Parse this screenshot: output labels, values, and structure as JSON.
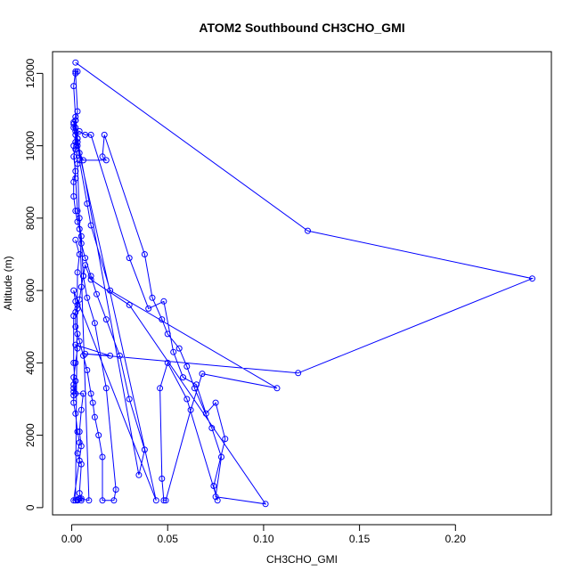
{
  "chart_data": {
    "type": "line",
    "title": "ATOM2 Southbound CH3CHO_GMI",
    "xlabel": "CH3CHO_GMI",
    "ylabel": "Altitude (m)",
    "xlim": [
      -0.01,
      0.25
    ],
    "ylim": [
      -200,
      12600
    ],
    "x_ticks": [
      0.0,
      0.05,
      0.1,
      0.15,
      0.2
    ],
    "x_tick_labels": [
      "0.00",
      "0.05",
      "0.10",
      "0.15",
      "0.20"
    ],
    "y_ticks": [
      0,
      2000,
      4000,
      6000,
      8000,
      10000,
      12000
    ],
    "y_tick_labels": [
      "0",
      "2000",
      "4000",
      "6000",
      "8000",
      "10000",
      "12000"
    ],
    "grid": false,
    "legend": "none",
    "series": [
      {
        "color": "#0000ff",
        "marker": "open-circle",
        "points": [
          [
            0.002,
            12300
          ],
          [
            0.123,
            7650
          ],
          [
            0.24,
            6330
          ],
          [
            0.118,
            3720
          ],
          [
            0.007,
            4250
          ],
          [
            0.02,
            4200
          ],
          [
            0.002,
            4500
          ],
          [
            0.003,
            4400
          ],
          [
            0.002,
            4000
          ],
          [
            0.001,
            3600
          ],
          [
            0.001,
            3300
          ],
          [
            0.001,
            3100
          ],
          [
            0.002,
            3500
          ],
          [
            0.001,
            3400
          ],
          [
            0.001,
            3200
          ],
          [
            0.001,
            2900
          ],
          [
            0.002,
            2600
          ],
          [
            0.003,
            2100
          ],
          [
            0.004,
            1800
          ],
          [
            0.003,
            1500
          ],
          [
            0.004,
            1300
          ],
          [
            0.005,
            1200
          ],
          [
            0.004,
            400
          ],
          [
            0.005,
            200
          ],
          [
            0.003,
            200
          ],
          [
            0.003,
            220
          ],
          [
            0.004,
            250
          ],
          [
            0.005,
            250
          ],
          [
            0.009,
            200
          ],
          [
            0.004,
            8000
          ],
          [
            0.003,
            9500
          ],
          [
            0.002,
            10300
          ],
          [
            0.004,
            10400
          ],
          [
            0.007,
            10300
          ],
          [
            0.01,
            10300
          ],
          [
            0.03,
            6900
          ],
          [
            0.04,
            5500
          ],
          [
            0.048,
            5700
          ],
          [
            0.053,
            4300
          ],
          [
            0.058,
            3600
          ],
          [
            0.065,
            3400
          ],
          [
            0.07,
            2600
          ],
          [
            0.075,
            2900
          ],
          [
            0.08,
            1900
          ],
          [
            0.074,
            600
          ],
          [
            0.076,
            200
          ],
          [
            0.06,
            3000
          ],
          [
            0.05,
            4000
          ],
          [
            0.046,
            3300
          ],
          [
            0.047,
            800
          ],
          [
            0.048,
            200
          ],
          [
            0.049,
            200
          ],
          [
            0.062,
            2700
          ],
          [
            0.068,
            3700
          ],
          [
            0.107,
            3300
          ],
          [
            0.02,
            6000
          ],
          [
            0.01,
            7800
          ],
          [
            0.008,
            8400
          ],
          [
            0.004,
            9600
          ],
          [
            0.002,
            10800
          ],
          [
            0.001,
            11650
          ],
          [
            0.002,
            12050
          ],
          [
            0.003,
            12050
          ],
          [
            0.002,
            12000
          ],
          [
            0.003,
            10950
          ],
          [
            0.002,
            10700
          ],
          [
            0.001,
            10600
          ],
          [
            0.002,
            10500
          ],
          [
            0.003,
            10200
          ],
          [
            0.003,
            10000
          ],
          [
            0.004,
            9800
          ],
          [
            0.006,
            9600
          ],
          [
            0.018,
            9600
          ],
          [
            0.016,
            9700
          ],
          [
            0.017,
            10300
          ],
          [
            0.038,
            7000
          ],
          [
            0.042,
            5800
          ],
          [
            0.047,
            5200
          ],
          [
            0.05,
            4800
          ],
          [
            0.056,
            4400
          ],
          [
            0.06,
            3900
          ],
          [
            0.064,
            3300
          ],
          [
            0.073,
            2200
          ],
          [
            0.078,
            1400
          ],
          [
            0.075,
            300
          ],
          [
            0.101,
            100
          ],
          [
            0.03,
            5600
          ],
          [
            0.01,
            6300
          ],
          [
            0.007,
            6700
          ],
          [
            0.006,
            6400
          ],
          [
            0.005,
            6100
          ],
          [
            0.004,
            5750
          ],
          [
            0.003,
            5600
          ],
          [
            0.002,
            5400
          ],
          [
            0.002,
            5000
          ],
          [
            0.003,
            4800
          ],
          [
            0.004,
            4600
          ],
          [
            0.006,
            4200
          ],
          [
            0.008,
            3800
          ],
          [
            0.01,
            3150
          ],
          [
            0.011,
            2900
          ],
          [
            0.012,
            2500
          ],
          [
            0.014,
            2000
          ],
          [
            0.016,
            1400
          ],
          [
            0.016,
            200
          ],
          [
            0.022,
            200
          ],
          [
            0.023,
            500
          ],
          [
            0.018,
            3300
          ],
          [
            0.012,
            5100
          ],
          [
            0.008,
            5800
          ],
          [
            0.006,
            6400
          ],
          [
            0.005,
            7500
          ],
          [
            0.003,
            8200
          ],
          [
            0.002,
            9100
          ],
          [
            0.001,
            10000
          ],
          [
            0.002,
            10100
          ],
          [
            0.003,
            10200
          ],
          [
            0.035,
            900
          ],
          [
            0.038,
            1600
          ],
          [
            0.03,
            3000
          ],
          [
            0.025,
            4200
          ],
          [
            0.018,
            5200
          ],
          [
            0.013,
            5900
          ],
          [
            0.01,
            6400
          ],
          [
            0.007,
            6900
          ],
          [
            0.005,
            7300
          ],
          [
            0.004,
            7700
          ],
          [
            0.003,
            7900
          ],
          [
            0.002,
            8200
          ],
          [
            0.001,
            8600
          ],
          [
            0.001,
            9000
          ],
          [
            0.002,
            9300
          ],
          [
            0.001,
            9700
          ],
          [
            0.002,
            9900
          ],
          [
            0.003,
            10100
          ],
          [
            0.002,
            10400
          ],
          [
            0.001,
            10650
          ],
          [
            0.002,
            10700
          ],
          [
            0.001,
            10500
          ],
          [
            0.044,
            200
          ],
          [
            0.001,
            6000
          ],
          [
            0.002,
            5700
          ],
          [
            0.003,
            5500
          ],
          [
            0.001,
            5300
          ],
          [
            0.001,
            4000
          ],
          [
            0.002,
            3150
          ],
          [
            0.006,
            3150
          ],
          [
            0.005,
            2700
          ],
          [
            0.004,
            2100
          ],
          [
            0.005,
            1700
          ],
          [
            0.001,
            200
          ],
          [
            0.002,
            200
          ],
          [
            0.003,
            6500
          ],
          [
            0.004,
            7000
          ],
          [
            0.002,
            7400
          ]
        ]
      }
    ]
  }
}
